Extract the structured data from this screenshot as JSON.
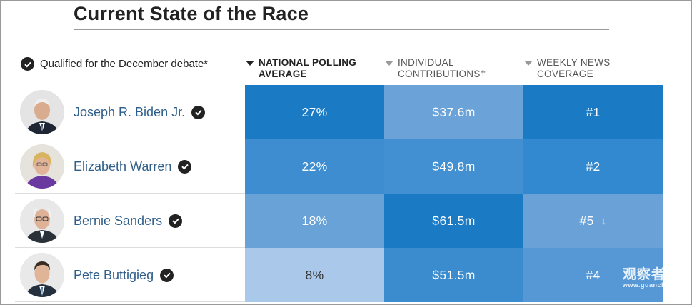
{
  "title": "Current State of the Race",
  "legend": {
    "text": "Qualified for the December debate*"
  },
  "columns": [
    {
      "label": "NATIONAL POLLING\nAVERAGE",
      "active": true
    },
    {
      "label": "INDIVIDUAL\nCONTRIBUTIONS†",
      "active": false
    },
    {
      "label": "WEEKLY NEWS\nCOVERAGE",
      "active": false
    }
  ],
  "candidates": [
    {
      "name": "Joseph R. Biden Jr.",
      "qualified": true,
      "polling": "27%",
      "contributions": "$37.6m",
      "news": "#1",
      "news_trend": "",
      "colors": {
        "polling": "#1a7ac4",
        "contributions": "#6ba3d8",
        "news": "#1a7ac4"
      }
    },
    {
      "name": "Elizabeth Warren",
      "qualified": true,
      "polling": "22%",
      "contributions": "$49.8m",
      "news": "#2",
      "news_trend": "",
      "colors": {
        "polling": "#3e8dd0",
        "contributions": "#4290d1",
        "news": "#3389cf"
      }
    },
    {
      "name": "Bernie Sanders",
      "qualified": true,
      "polling": "18%",
      "contributions": "$61.5m",
      "news": "#5",
      "news_trend": "↓",
      "colors": {
        "polling": "#69a2d7",
        "contributions": "#1a7ac4",
        "news": "#6aa2d8"
      }
    },
    {
      "name": "Pete Buttigieg",
      "qualified": true,
      "polling": "8%",
      "contributions": "$51.5m",
      "news": "#4",
      "news_trend": "",
      "colors": {
        "polling": "#a9c8ea",
        "contributions": "#3a8ccf",
        "news": "#5698d5"
      }
    }
  ],
  "icons": {
    "check": "check-circle-icon",
    "sort": "sort-triangle-icon",
    "down": "down-arrow-icon"
  },
  "watermark": {
    "main": "观察者网",
    "sub": "www.guancha.cn"
  }
}
